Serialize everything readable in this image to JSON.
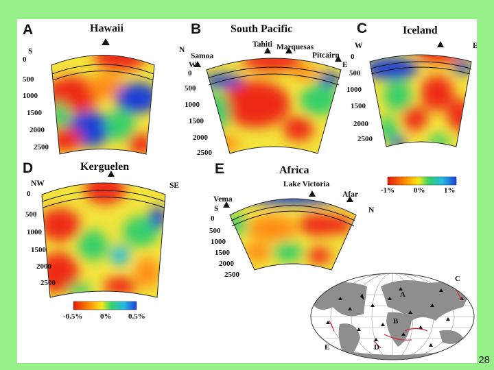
{
  "slide": {
    "number": "28"
  },
  "colors": {
    "background": "#98f08a",
    "fast": "#1a3fd8",
    "slow": "#e8200f",
    "mid": "#2fd27a"
  },
  "panels": [
    {
      "letter": "A",
      "title": "Hawaii",
      "edge_left": "S",
      "edge_right": "N",
      "depths": [
        "0",
        "500",
        "1000",
        "1500",
        "2000",
        "2500"
      ]
    },
    {
      "letter": "B",
      "title": "South Pacific",
      "edge_left": "W",
      "edge_right": "E",
      "labels": [
        "Samoa",
        "Tahiti",
        "Marquesas",
        "Pitcairn"
      ],
      "depths": [
        "0",
        "500",
        "1000",
        "1500",
        "2000",
        "2500"
      ]
    },
    {
      "letter": "C",
      "title": "Iceland",
      "edge_left": "W",
      "edge_right": "E",
      "depths": [
        "0",
        "500",
        "1000",
        "1500",
        "2000",
        "2500"
      ]
    },
    {
      "letter": "D",
      "title": "Kerguelen",
      "edge_left": "NW",
      "edge_right": "SE",
      "depths": [
        "0",
        "500",
        "1000",
        "1500",
        "2000",
        "2500"
      ]
    },
    {
      "letter": "E",
      "title": "Africa",
      "edge_left": "S",
      "edge_right": "N",
      "labels": [
        "Vema",
        "Lake Victoria",
        "Afar"
      ],
      "depths": [
        "0",
        "500",
        "1000",
        "1500",
        "2000",
        "2500"
      ]
    }
  ],
  "scale_top": {
    "labels": [
      "-1%",
      "0%",
      "1%"
    ]
  },
  "scale_bottom": {
    "labels": [
      "-0.5%",
      "0%",
      "0.5%"
    ]
  },
  "map": {
    "labels": [
      "A",
      "B",
      "C",
      "D",
      "E"
    ]
  }
}
